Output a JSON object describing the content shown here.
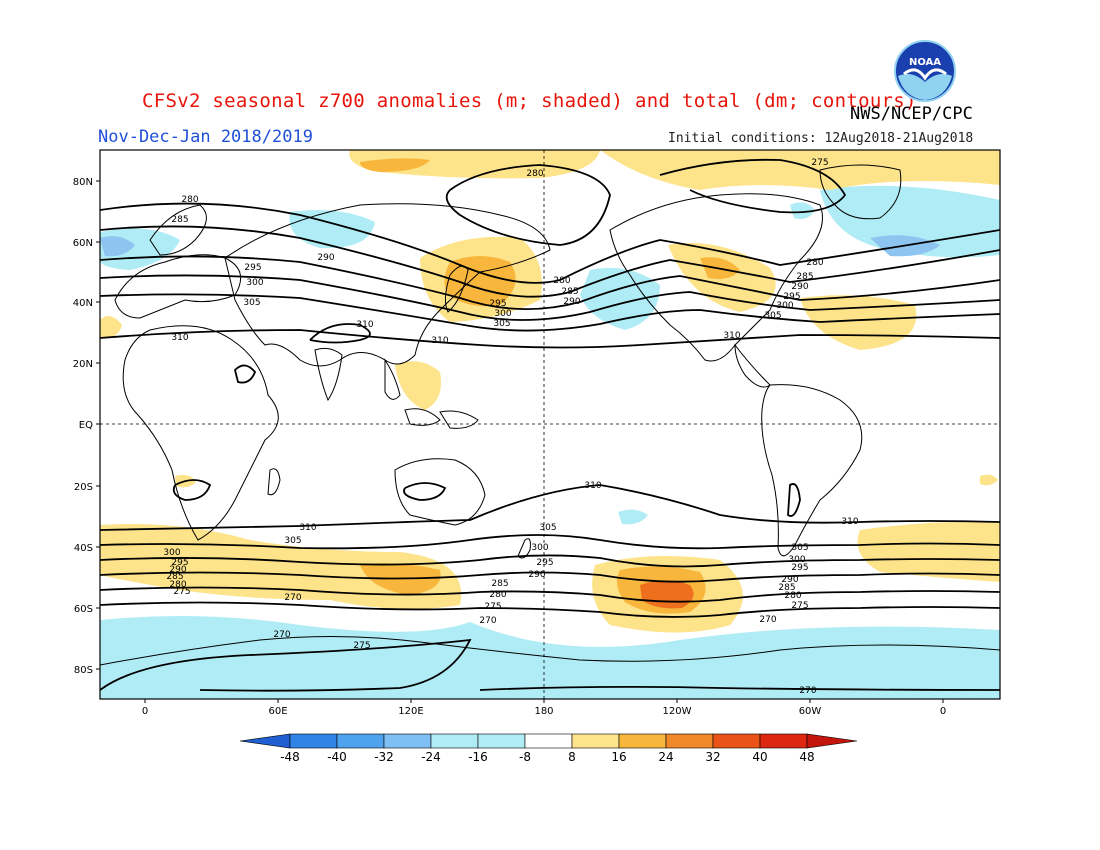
{
  "header": {
    "title": "CFSv2 seasonal z700 anomalies (m; shaded) and total (dm; contours)",
    "org": "NWS/NCEP/CPC",
    "period": "Nov-Dec-Jan 2018/2019",
    "initial_conditions": "Initial conditions: 12Aug2018-21Aug2018",
    "logo_text": "NOAA"
  },
  "map": {
    "lat_labels": [
      "80N",
      "60N",
      "40N",
      "20N",
      "EQ",
      "20S",
      "40S",
      "60S",
      "80S"
    ],
    "lon_labels": [
      "0",
      "60E",
      "120E",
      "180",
      "120W",
      "60W",
      "0"
    ],
    "contour_labels": [
      "270",
      "275",
      "280",
      "285",
      "290",
      "295",
      "300",
      "305",
      "310"
    ],
    "colors": {
      "neg_light": "#b0ecf5",
      "pos_light": "#fde38a",
      "pos_mid": "#f8b73c",
      "pos_strong": "#ee6f1d",
      "neg_mid": "#8dc5f0",
      "contour": "#000000",
      "coast": "#000000"
    }
  },
  "colorbar": {
    "ticks": [
      "-48",
      "-40",
      "-32",
      "-24",
      "-16",
      "-8",
      "8",
      "16",
      "24",
      "32",
      "40",
      "48"
    ],
    "colors": [
      "#1f5fd2",
      "#2f84e6",
      "#4ea2ee",
      "#7ec0f4",
      "#b0ecf5",
      "#ffffff",
      "#fde38a",
      "#f8b73c",
      "#f1892b",
      "#ea5318",
      "#dd2710",
      "#c2150c"
    ]
  }
}
